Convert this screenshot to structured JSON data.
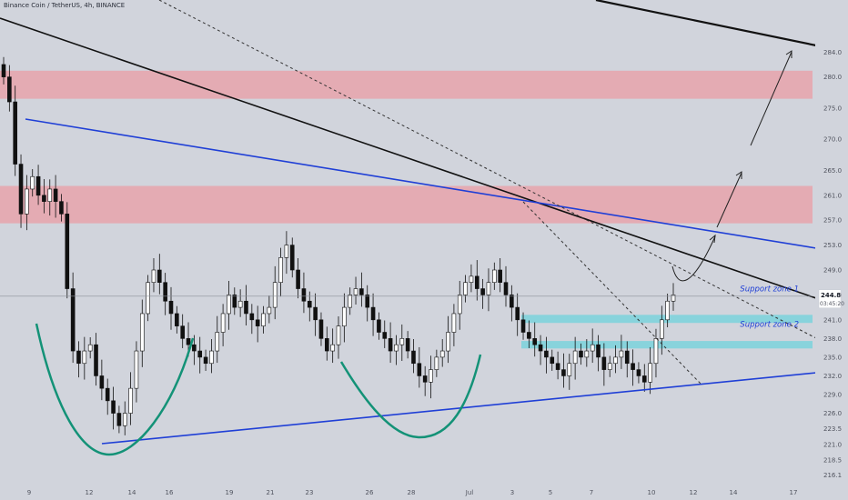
{
  "header": {
    "symbol_title": "Binance Coin / TetherUS, 4h, BINANCE"
  },
  "price_badge": {
    "price": "244.8",
    "countdown": "03:45:20"
  },
  "zones": {
    "support_1": "Support zone 1",
    "support_2": "Support zone 2"
  },
  "colors": {
    "background": "#d1d4dc",
    "resistance_zone": "#e8a3ab",
    "support_zone": "#7fd3dc",
    "blue_line": "#1f3fd6",
    "black_line": "#111111",
    "cup_curve": "#139277"
  },
  "chart_data": {
    "type": "candlestick",
    "symbol": "Binance Coin / TetherUS",
    "timeframe": "4h",
    "exchange": "BINANCE",
    "last_price": 244.8,
    "y_ticks": [
      284.0,
      280.0,
      275.0,
      270.0,
      265.0,
      261.0,
      257.0,
      253.0,
      249.0,
      245.0,
      241.0,
      238.0,
      235.0,
      232.0,
      229.0,
      226.0,
      223.5,
      221.0,
      218.5,
      216.1
    ],
    "x_ticks": [
      "9",
      "12",
      "14",
      "16",
      "19",
      "21",
      "23",
      "26",
      "28",
      "Jul",
      "3",
      "5",
      "7",
      "10",
      "12",
      "14",
      "17"
    ],
    "ylim": [
      215.5,
      286.0
    ],
    "resistance_zones": [
      [
        276.5,
        281.0
      ],
      [
        256.5,
        262.5
      ]
    ],
    "support_zones": [
      {
        "label": "Support zone 1",
        "range": [
          240.5,
          241.8
        ]
      },
      {
        "label": "Support zone 2",
        "range": [
          236.4,
          237.6
        ]
      }
    ],
    "candles_close": [
      280,
      276,
      266,
      258,
      262,
      264,
      261,
      260,
      262,
      260,
      258,
      246,
      236,
      234,
      236,
      237,
      232,
      230,
      228,
      226,
      224,
      226,
      230,
      236,
      242,
      247,
      249,
      247,
      244,
      242,
      240,
      238,
      237,
      236,
      235,
      234,
      236,
      239,
      242,
      245,
      243,
      244,
      242,
      241,
      240,
      242,
      243,
      247,
      251,
      253,
      249,
      246,
      244,
      243,
      241,
      238,
      236,
      237,
      240,
      243,
      245,
      246,
      245,
      243,
      241,
      239,
      238,
      236,
      237,
      238,
      236,
      234,
      232,
      231,
      233,
      235,
      236,
      239,
      242,
      245,
      247,
      248,
      246,
      245,
      247,
      249,
      247,
      245,
      243,
      241,
      239,
      238,
      237,
      236,
      235,
      234,
      233,
      232,
      234,
      236,
      235,
      236,
      237,
      235,
      233,
      234,
      235,
      236,
      234,
      233,
      232,
      231,
      234,
      238,
      241,
      244,
      245
    ]
  }
}
